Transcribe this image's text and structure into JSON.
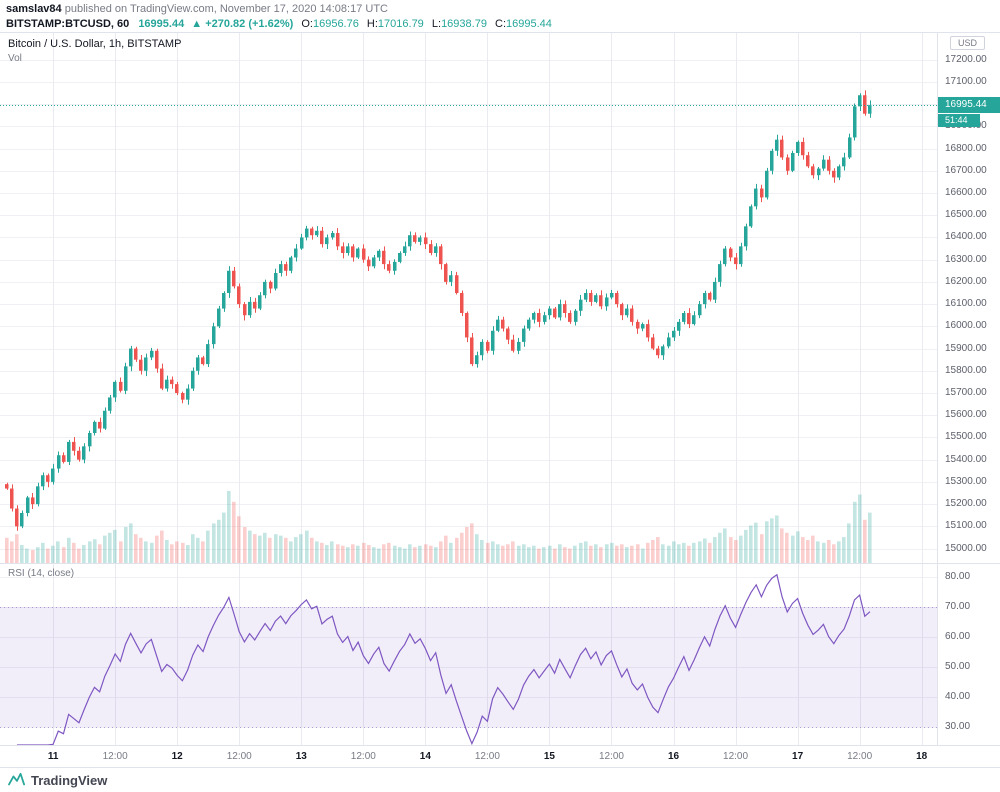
{
  "header": {
    "author": "samslav84",
    "published": " published on TradingView.com, November 17, 2020 14:08:17 UTC",
    "symbol": "BITSTAMP:BTCUSD, 60",
    "last": "16995.44",
    "change": "▲ +270.82 (+1.62%)",
    "ohlc": {
      "o_label": "O:",
      "o": "16956.76",
      "h_label": "H:",
      "h": "17016.79",
      "l_label": "L:",
      "l": "16938.79",
      "c_label": "C:",
      "c": "16995.44"
    }
  },
  "main_pane": {
    "title": "Bitcoin / U.S. Dollar, 1h, BITSTAMP",
    "vol_label": "Vol",
    "currency_chip": "USD",
    "price_badge": "16995.44",
    "countdown_badge": "51:44"
  },
  "rsi_pane": {
    "label": "RSI (14, close)"
  },
  "footer": {
    "brand": "TradingView"
  },
  "colors": {
    "up": "#26a69a",
    "down": "#ef5350",
    "rsi_line": "#7e57c2",
    "rsi_band": "rgba(126,87,194,0.10)",
    "rsi_band_edge": "rgba(126,87,194,0.55)",
    "grid": "#eef0f3",
    "grid_v": "#e9ebf0",
    "accent": "#26a69a"
  },
  "chart_data": {
    "type": "candlestick+volume+rsi",
    "title": "Bitcoin / U.S. Dollar, 1h, BITSTAMP",
    "symbol": "BITSTAMP:BTCUSD",
    "interval": "1h",
    "current_price": 16995.44,
    "last_bar": {
      "open": 16956.76,
      "high": 17016.79,
      "low": 16938.79,
      "close": 16995.44
    },
    "price_axis": {
      "min": 14935,
      "max": 17320,
      "ticks": [
        "17200.00",
        "17100.00",
        "17000.00",
        "16900.00",
        "16800.00",
        "16700.00",
        "16600.00",
        "16500.00",
        "16400.00",
        "16300.00",
        "16200.00",
        "16100.00",
        "16000.00",
        "15900.00",
        "15800.00",
        "15700.00",
        "15600.00",
        "15500.00",
        "15400.00",
        "15300.00",
        "15200.00",
        "15100.00",
        "15000.00"
      ]
    },
    "rsi_axis": {
      "length": 14,
      "source": "close",
      "overbought": 70,
      "oversold": 30,
      "ticks": [
        "80.00",
        "70.00",
        "60.00",
        "50.00",
        "40.00",
        "30.00"
      ]
    },
    "time_ticks": [
      {
        "label": "11",
        "index": 9,
        "major": true
      },
      {
        "label": "12:00",
        "index": 21,
        "major": false
      },
      {
        "label": "12",
        "index": 33,
        "major": true
      },
      {
        "label": "12:00",
        "index": 45,
        "major": false
      },
      {
        "label": "13",
        "index": 57,
        "major": true
      },
      {
        "label": "12:00",
        "index": 69,
        "major": false
      },
      {
        "label": "14",
        "index": 81,
        "major": true
      },
      {
        "label": "12:00",
        "index": 93,
        "major": false
      },
      {
        "label": "15",
        "index": 105,
        "major": true
      },
      {
        "label": "12:00",
        "index": 117,
        "major": false
      },
      {
        "label": "16",
        "index": 129,
        "major": true
      },
      {
        "label": "12:00",
        "index": 141,
        "major": false
      },
      {
        "label": "17",
        "index": 153,
        "major": true
      },
      {
        "label": "12:00",
        "index": 165,
        "major": false
      },
      {
        "label": "18",
        "index": 177,
        "major": true
      }
    ],
    "closes": [
      15270,
      15180,
      15100,
      15160,
      15230,
      15200,
      15280,
      15330,
      15300,
      15360,
      15420,
      15390,
      15480,
      15440,
      15400,
      15460,
      15520,
      15570,
      15540,
      15620,
      15680,
      15750,
      15710,
      15820,
      15900,
      15850,
      15800,
      15860,
      15890,
      15810,
      15720,
      15760,
      15740,
      15700,
      15670,
      15720,
      15800,
      15860,
      15830,
      15920,
      16000,
      16080,
      16150,
      16250,
      16180,
      16100,
      16050,
      16110,
      16080,
      16140,
      16200,
      16170,
      16240,
      16280,
      16250,
      16310,
      16350,
      16400,
      16440,
      16410,
      16430,
      16370,
      16400,
      16420,
      16360,
      16330,
      16360,
      16310,
      16350,
      16300,
      16270,
      16310,
      16340,
      16280,
      16250,
      16290,
      16330,
      16360,
      16410,
      16380,
      16400,
      16370,
      16330,
      16360,
      16280,
      16200,
      16230,
      16150,
      16060,
      15950,
      15830,
      15870,
      15930,
      15890,
      15980,
      16030,
      15990,
      15940,
      15890,
      15930,
      15990,
      16030,
      16060,
      16020,
      16050,
      16080,
      16040,
      16100,
      16060,
      16020,
      16070,
      16120,
      16150,
      16110,
      16140,
      16090,
      16130,
      16150,
      16100,
      16050,
      16080,
      16020,
      15990,
      16010,
      15950,
      15900,
      15870,
      15910,
      15950,
      15980,
      16020,
      16060,
      16010,
      16050,
      16100,
      16150,
      16120,
      16200,
      16280,
      16350,
      16310,
      16280,
      16360,
      16450,
      16540,
      16620,
      16580,
      16700,
      16790,
      16840,
      16760,
      16700,
      16780,
      16830,
      16770,
      16720,
      16680,
      16710,
      16750,
      16700,
      16670,
      16720,
      16760,
      16850,
      16990,
      17040,
      16956.76,
      16995.44
    ],
    "volumes": [
      35,
      30,
      40,
      25,
      20,
      18,
      22,
      28,
      20,
      24,
      30,
      22,
      35,
      28,
      20,
      25,
      30,
      33,
      26,
      38,
      42,
      46,
      30,
      50,
      55,
      40,
      35,
      30,
      28,
      38,
      45,
      32,
      26,
      30,
      28,
      25,
      40,
      35,
      30,
      45,
      55,
      60,
      70,
      100,
      85,
      65,
      50,
      45,
      40,
      38,
      42,
      35,
      40,
      38,
      35,
      30,
      36,
      40,
      45,
      35,
      30,
      28,
      25,
      30,
      26,
      24,
      22,
      26,
      24,
      28,
      25,
      22,
      20,
      26,
      28,
      24,
      22,
      20,
      26,
      22,
      24,
      26,
      24,
      22,
      30,
      38,
      28,
      35,
      42,
      50,
      55,
      40,
      32,
      28,
      30,
      26,
      24,
      26,
      30,
      24,
      26,
      22,
      24,
      20,
      22,
      24,
      20,
      26,
      22,
      20,
      24,
      28,
      30,
      24,
      26,
      22,
      26,
      28,
      24,
      26,
      22,
      24,
      26,
      20,
      28,
      32,
      36,
      26,
      24,
      30,
      26,
      28,
      24,
      28,
      30,
      34,
      28,
      36,
      42,
      48,
      36,
      32,
      38,
      46,
      52,
      56,
      40,
      58,
      62,
      66,
      48,
      42,
      38,
      44,
      36,
      32,
      38,
      30,
      28,
      32,
      26,
      30,
      36,
      55,
      85,
      95,
      60,
      70
    ]
  }
}
